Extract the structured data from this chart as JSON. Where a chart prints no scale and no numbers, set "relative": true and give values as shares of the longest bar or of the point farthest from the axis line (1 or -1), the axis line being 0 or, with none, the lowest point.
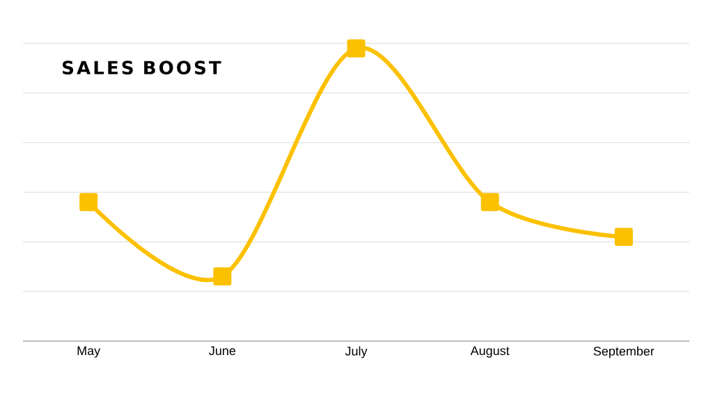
{
  "chart_data": {
    "type": "line",
    "title": "SALES BOOST",
    "relative": true,
    "categories": [
      "May",
      "June",
      "July",
      "August",
      "September"
    ],
    "series": [
      {
        "color": "#fbc100",
        "values": [
          0.475,
          0.221,
          1,
          0.475,
          0.356
        ]
      }
    ],
    "marker": "square",
    "line_style": "solid",
    "grid": "y",
    "tick_labels": "x"
  }
}
